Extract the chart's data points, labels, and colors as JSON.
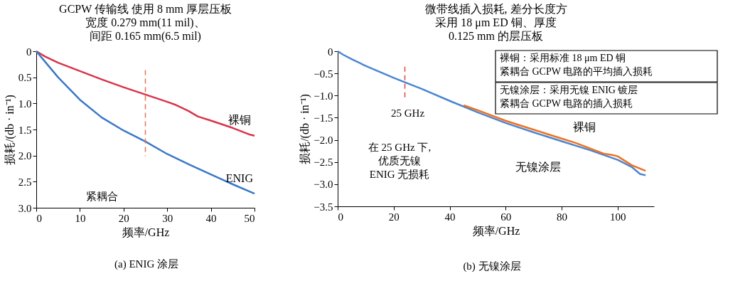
{
  "chart_data": [
    {
      "type": "line",
      "title": "GCPW 传输线  使用 8 mm 厚层压板宽度 0.279 mm(11 mil)、间距 0.165 mm(6.5 mil)",
      "xlabel": "频率/GHz",
      "ylabel": "损耗/(db · in⁻¹)",
      "xlim": [
        0,
        50
      ],
      "xticks": [
        0,
        10,
        20,
        30,
        40,
        50
      ],
      "ylim": [
        3,
        0
      ],
      "yticks": [
        {
          "value": 0,
          "label": "0"
        },
        0.5,
        {
          "value": 1,
          "label": "1.0"
        },
        1.5,
        {
          "value": 2,
          "label": "2.0"
        },
        2.5,
        {
          "value": 3,
          "label": "3.0"
        }
      ],
      "series": [
        {
          "name": "裸铜",
          "color": "#d9344a",
          "x": [
            0,
            2,
            5,
            10,
            15,
            20,
            25,
            30,
            32,
            35,
            37,
            40,
            45,
            49,
            50
          ],
          "values": [
            0,
            0.1,
            0.22,
            0.38,
            0.54,
            0.69,
            0.83,
            0.97,
            1.03,
            1.15,
            1.25,
            1.33,
            1.47,
            1.6,
            1.62
          ]
        },
        {
          "name": "ENIG",
          "color": "#3a78c9",
          "x": [
            0,
            2,
            5,
            10,
            15,
            20,
            25,
            30,
            35,
            40,
            45,
            50
          ],
          "values": [
            0,
            0.2,
            0.5,
            0.93,
            1.27,
            1.52,
            1.73,
            1.97,
            2.17,
            2.36,
            2.55,
            2.73
          ]
        }
      ],
      "ref_lines": [
        {
          "axis": "x",
          "value": 25,
          "label": null,
          "color": "#e8734f",
          "line_style": "dashed"
        }
      ],
      "annotations": [
        "紧耦合",
        "(a)  ENIG 涂层"
      ]
    },
    {
      "type": "line",
      "title": "微带线插入损耗, 差分长度方采用 18 μm ED 铜、厚度0.125 mm 的层压板",
      "xlabel": "频率/GHz",
      "ylabel": "损耗/(db · in⁻¹)",
      "xlim": [
        0,
        113
      ],
      "xticks": [
        0,
        20,
        40,
        60,
        80,
        100
      ],
      "ylim": [
        -3.5,
        0
      ],
      "yticks": [
        {
          "value": 0,
          "label": "0"
        },
        {
          "value": -0.5,
          "label": "−0.5"
        },
        {
          "value": -1,
          "label": "−1.0"
        },
        {
          "value": -1.5,
          "label": "−1.5"
        },
        {
          "value": -2,
          "label": "−2.0"
        },
        {
          "value": -2.5,
          "label": "−2.5"
        },
        {
          "value": -3,
          "label": "−3.0"
        },
        {
          "value": -3.5,
          "label": "−3.5"
        }
      ],
      "series": [
        {
          "name": "无镍涂层",
          "color": "#4a86d0",
          "x": [
            0,
            2,
            5,
            10,
            20,
            24,
            30,
            40,
            50,
            60,
            70,
            80,
            90,
            100,
            105,
            108,
            110
          ],
          "values": [
            0,
            -0.08,
            -0.18,
            -0.33,
            -0.6,
            -0.7,
            -0.85,
            -1.12,
            -1.38,
            -1.62,
            -1.83,
            -2.03,
            -2.23,
            -2.45,
            -2.61,
            -2.77,
            -2.8
          ]
        },
        {
          "name": "裸铜",
          "color": "#f07020",
          "x": [
            45,
            50,
            60,
            70,
            80,
            85,
            90,
            95,
            98,
            100,
            105,
            110
          ],
          "values": [
            -1.22,
            -1.33,
            -1.57,
            -1.77,
            -1.97,
            -2.07,
            -2.19,
            -2.31,
            -2.34,
            -2.37,
            -2.57,
            -2.7
          ]
        }
      ],
      "ref_lines": [
        {
          "axis": "x",
          "value": 24,
          "label": "25 GHz",
          "color": "#e0453a",
          "line_style": "dashed"
        }
      ],
      "annotations": [
        "裸铜：采用标准 18 μm ED 铜紧耦合 GCPW 电路的平均插入损耗",
        "无镍涂层：采用无镍 ENIG 镀层紧耦合 GCPW 电路的插入损耗",
        "在 25 GHz 下,\n优质无镍\nENIG 无损耗",
        "(b)  无镍涂层"
      ]
    }
  ]
}
